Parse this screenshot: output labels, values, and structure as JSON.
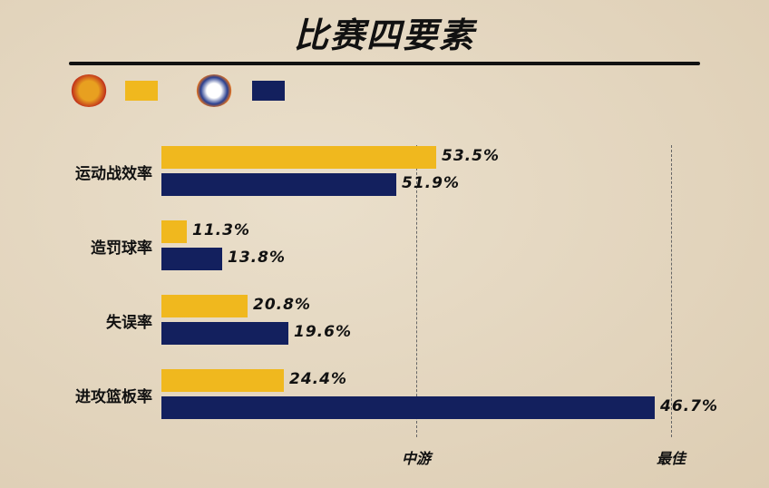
{
  "title": "比赛四要素",
  "legend": [
    {
      "team_logo": "guangdong-tigers-logo",
      "color": "#f0b81e"
    },
    {
      "team_logo": "shanghai-sharks-logo",
      "color": "#13205e"
    }
  ],
  "chart_data": {
    "type": "bar",
    "orientation": "horizontal",
    "categories": [
      "运动战效率",
      "造罚球率",
      "失误率",
      "进攻篮板率"
    ],
    "series": [
      {
        "color": "#f0b81e",
        "values": [
          53.5,
          11.3,
          20.8,
          24.4
        ],
        "labels": [
          "53.5%",
          "11.3%",
          "20.8%",
          "24.4%"
        ]
      },
      {
        "color": "#13205e",
        "values": [
          51.9,
          13.8,
          19.6,
          46.7
        ],
        "labels": [
          "51.9%",
          "13.8%",
          "19.6%",
          "46.7%"
        ]
      }
    ],
    "reference_lines": [
      {
        "label": "中游"
      },
      {
        "label": "最佳"
      }
    ]
  }
}
